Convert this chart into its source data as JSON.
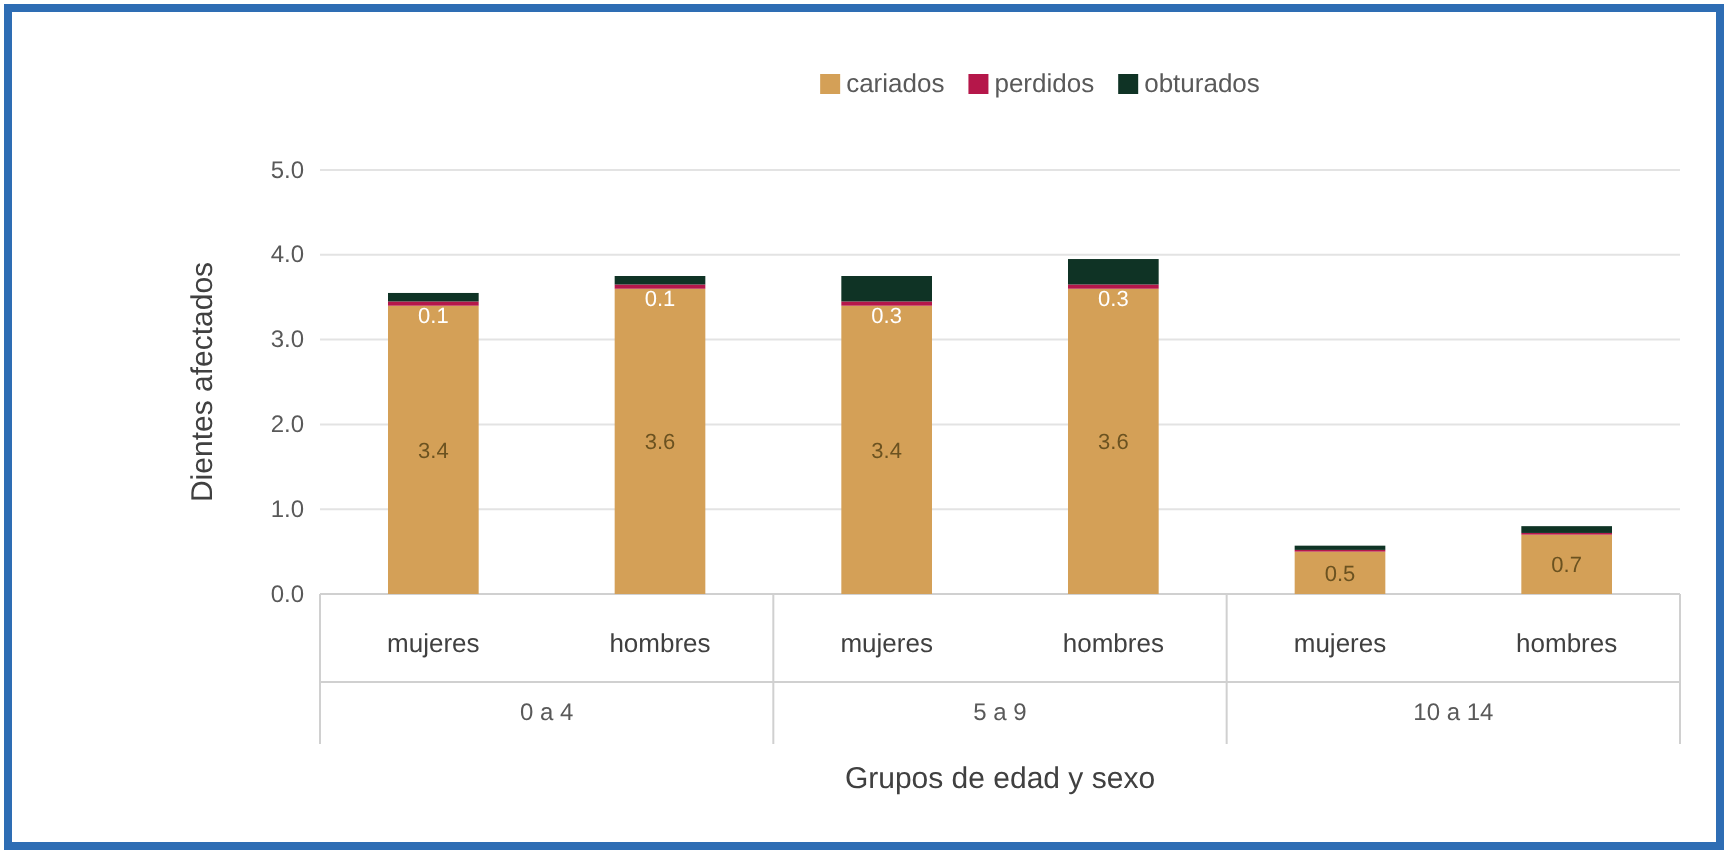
{
  "chart_data": {
    "type": "bar",
    "stacked": true,
    "xlabel": "Grupos de edad y sexo",
    "ylabel": "Dientes afectados",
    "categories": [
      "mujeres",
      "hombres",
      "mujeres",
      "hombres",
      "mujeres",
      "hombres"
    ],
    "annotations": [
      "0 a 4",
      "5 a 9",
      "10 a 14"
    ],
    "series": [
      {
        "name": "cariados",
        "color": "#d4a057",
        "values": [
          3.4,
          3.6,
          3.4,
          3.6,
          0.5,
          0.7
        ],
        "value_labels": [
          "3.4",
          "3.6",
          "3.4",
          "3.6",
          "0.5",
          "0.7"
        ]
      },
      {
        "name": "perdidos",
        "color": "#b5174a",
        "values": [
          0.05,
          0.05,
          0.05,
          0.05,
          0.02,
          0.02
        ]
      },
      {
        "name": "obturados",
        "color": "#0f3325",
        "values": [
          0.1,
          0.1,
          0.3,
          0.3,
          0.05,
          0.08
        ],
        "value_labels": [
          "0.1",
          "0.1",
          "0.3",
          "0.3",
          null,
          null
        ]
      }
    ],
    "ylim": [
      0,
      5
    ],
    "yticks": [
      {
        "value": 0,
        "label": "0.0"
      },
      {
        "value": 1,
        "label": "1.0"
      },
      {
        "value": 2,
        "label": "2.0"
      },
      {
        "value": 3,
        "label": "3.0"
      },
      {
        "value": 4,
        "label": "4.0"
      },
      {
        "value": 5,
        "label": "5.0"
      }
    ],
    "grid": "y",
    "legend": "top"
  }
}
